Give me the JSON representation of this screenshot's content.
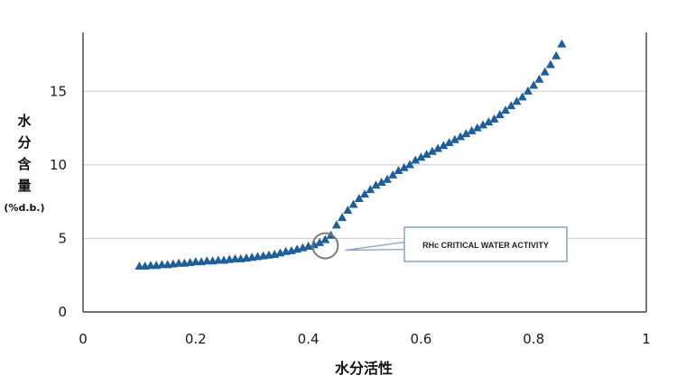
{
  "chart_data": {
    "type": "scatter",
    "title": "",
    "xlabel": "水分活性",
    "ylabel_chars": [
      "水",
      "分",
      "含",
      "量"
    ],
    "ylabel_unit": "(%d.b.)",
    "xlim": [
      0,
      1
    ],
    "ylim": [
      0,
      19
    ],
    "xticks": [
      0,
      0.2,
      0.4,
      0.6,
      0.8,
      1
    ],
    "xtick_labels": [
      "0",
      "0.2",
      "0.4",
      "0.6",
      "0.8",
      "1"
    ],
    "yticks": [
      0,
      5,
      10,
      15
    ],
    "ytick_labels": [
      "0",
      "5",
      "10",
      "15"
    ],
    "grid": "horizontal",
    "marker": "triangle",
    "marker_color": "#1f5f99",
    "series": [
      {
        "x": [
          0.1,
          0.11,
          0.12,
          0.13,
          0.14,
          0.15,
          0.16,
          0.17,
          0.18,
          0.19,
          0.2,
          0.21,
          0.22,
          0.23,
          0.24,
          0.25,
          0.26,
          0.27,
          0.28,
          0.29,
          0.3,
          0.31,
          0.32,
          0.33,
          0.34,
          0.35,
          0.36,
          0.37,
          0.38,
          0.39,
          0.4,
          0.41,
          0.42,
          0.43,
          0.44,
          0.45,
          0.46,
          0.47,
          0.48,
          0.49,
          0.5,
          0.51,
          0.52,
          0.53,
          0.54,
          0.55,
          0.56,
          0.57,
          0.58,
          0.59,
          0.6,
          0.61,
          0.62,
          0.63,
          0.64,
          0.65,
          0.66,
          0.67,
          0.68,
          0.69,
          0.7,
          0.71,
          0.72,
          0.73,
          0.74,
          0.75,
          0.76,
          0.77,
          0.78,
          0.79,
          0.8,
          0.81,
          0.82,
          0.83,
          0.84,
          0.85
        ],
        "y": [
          3.1,
          3.1,
          3.15,
          3.15,
          3.2,
          3.2,
          3.25,
          3.3,
          3.3,
          3.35,
          3.4,
          3.4,
          3.45,
          3.45,
          3.5,
          3.5,
          3.55,
          3.6,
          3.6,
          3.65,
          3.7,
          3.75,
          3.8,
          3.85,
          3.9,
          4.0,
          4.1,
          4.15,
          4.25,
          4.35,
          4.45,
          4.55,
          4.7,
          4.9,
          5.2,
          5.9,
          6.4,
          6.9,
          7.3,
          7.7,
          8.0,
          8.3,
          8.6,
          8.8,
          9.0,
          9.3,
          9.6,
          9.8,
          10.0,
          10.3,
          10.5,
          10.7,
          10.9,
          11.1,
          11.3,
          11.5,
          11.7,
          11.9,
          12.1,
          12.3,
          12.5,
          12.7,
          12.9,
          13.1,
          13.4,
          13.7,
          14.0,
          14.3,
          14.6,
          15.0,
          15.4,
          15.8,
          16.3,
          16.8,
          17.4,
          18.2
        ]
      }
    ],
    "annotation": {
      "text": "RHc CRITICAL WATER ACTIVITY",
      "circle_x": 0.43,
      "circle_y": 4.5
    }
  }
}
